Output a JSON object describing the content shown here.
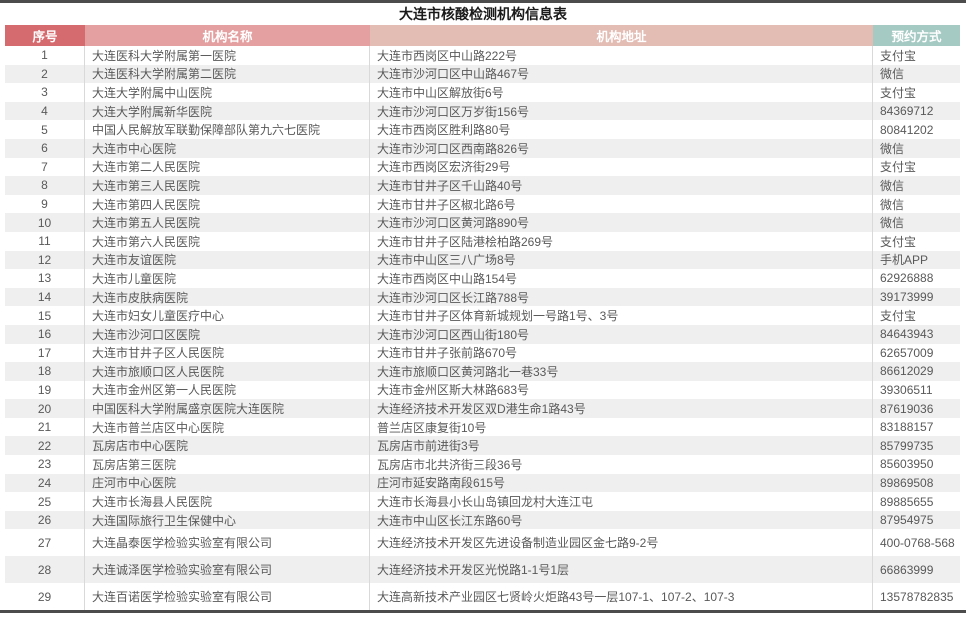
{
  "page": {
    "title": "大连市核酸检测机构信息表"
  },
  "colors": {
    "border_dark": "#4c4c4c",
    "header_no_bg": "#d56b6f",
    "header_name_bg": "#e4a0a0",
    "header_address_bg": "#e3bcb4",
    "header_booking_bg": "#a5cac3",
    "row_alt_bg": "#efefef",
    "body_text": "#595959"
  },
  "table": {
    "headers": [
      {
        "label": "序号",
        "bg": "#d56b6f"
      },
      {
        "label": "机构名称",
        "bg": "#e4a0a0"
      },
      {
        "label": "机构地址",
        "bg": "#e3bcb4"
      },
      {
        "label": "预约方式",
        "bg": "#a5cac3"
      }
    ],
    "rows": [
      {
        "no": "1",
        "name": "大连医科大学附属第一医院",
        "address": "大连市西岗区中山路222号",
        "booking": "支付宝"
      },
      {
        "no": "2",
        "name": "大连医科大学附属第二医院",
        "address": "大连市沙河口区中山路467号",
        "booking": "微信"
      },
      {
        "no": "3",
        "name": "大连大学附属中山医院",
        "address": "大连市中山区解放街6号",
        "booking": "支付宝"
      },
      {
        "no": "4",
        "name": "大连大学附属新华医院",
        "address": "大连市沙河口区万岁街156号",
        "booking": "84369712"
      },
      {
        "no": "5",
        "name": "中国人民解放军联勤保障部队第九六七医院",
        "address": "大连市西岗区胜利路80号",
        "booking": "80841202"
      },
      {
        "no": "6",
        "name": "大连市中心医院",
        "address": "大连市沙河口区西南路826号",
        "booking": "微信"
      },
      {
        "no": "7",
        "name": "大连市第二人民医院",
        "address": "大连市西岗区宏济街29号",
        "booking": "支付宝"
      },
      {
        "no": "8",
        "name": "大连市第三人民医院",
        "address": "大连市甘井子区千山路40号",
        "booking": "微信"
      },
      {
        "no": "9",
        "name": "大连市第四人民医院",
        "address": "大连市甘井子区椒北路6号",
        "booking": "微信"
      },
      {
        "no": "10",
        "name": "大连市第五人民医院",
        "address": "大连市沙河口区黄河路890号",
        "booking": "微信"
      },
      {
        "no": "11",
        "name": "大连市第六人民医院",
        "address": "大连市甘井子区陆港桧柏路269号",
        "booking": "支付宝"
      },
      {
        "no": "12",
        "name": "大连市友谊医院",
        "address": "大连市中山区三八广场8号",
        "booking": "手机APP"
      },
      {
        "no": "13",
        "name": "大连市儿童医院",
        "address": "大连市西岗区中山路154号",
        "booking": "62926888"
      },
      {
        "no": "14",
        "name": "大连市皮肤病医院",
        "address": "大连市沙河口区长江路788号",
        "booking": "39173999"
      },
      {
        "no": "15",
        "name": "大连市妇女儿童医疗中心",
        "address": "大连市甘井子区体育新城规划一号路1号、3号",
        "booking": "支付宝"
      },
      {
        "no": "16",
        "name": "大连市沙河口区医院",
        "address": "大连市沙河口区西山街180号",
        "booking": "84643943"
      },
      {
        "no": "17",
        "name": "大连市甘井子区人民医院",
        "address": "大连市甘井子张前路670号",
        "booking": "62657009"
      },
      {
        "no": "18",
        "name": "大连市旅顺口区人民医院",
        "address": "大连市旅顺口区黄河路北一巷33号",
        "booking": "86612029"
      },
      {
        "no": "19",
        "name": "大连市金州区第一人民医院",
        "address": "大连市金州区斯大林路683号",
        "booking": "39306511"
      },
      {
        "no": "20",
        "name": "中国医科大学附属盛京医院大连医院",
        "address": "大连经济技术开发区双D港生命1路43号",
        "booking": "87619036"
      },
      {
        "no": "21",
        "name": "大连市普兰店区中心医院",
        "address": "普兰店区康复街10号",
        "booking": "83188157"
      },
      {
        "no": "22",
        "name": "瓦房店市中心医院",
        "address": "瓦房店市前进街3号",
        "booking": "85799735"
      },
      {
        "no": "23",
        "name": "瓦房店第三医院",
        "address": "瓦房店市北共济街三段36号",
        "booking": "85603950"
      },
      {
        "no": "24",
        "name": "庄河市中心医院",
        "address": "庄河市延安路南段615号",
        "booking": "89869508"
      },
      {
        "no": "25",
        "name": "大连市长海县人民医院",
        "address": "大连市长海县小长山岛镇回龙村大连江屯",
        "booking": "89885655"
      },
      {
        "no": "26",
        "name": "大连国际旅行卫生保健中心",
        "address": "大连市中山区长江东路60号",
        "booking": "87954975"
      },
      {
        "no": "27",
        "name": "大连晶泰医学检验实验室有限公司",
        "address": "大连经济技术开发区先进设备制造业园区金七路9-2号",
        "booking": "400-0768-568"
      },
      {
        "no": "28",
        "name": "大连诚泽医学检验实验室有限公司",
        "address": "大连经济技术开发区光悦路1-1号1层",
        "booking": "66863999"
      },
      {
        "no": "29",
        "name": "大连百诺医学检验实验室有限公司",
        "address": "大连高新技术产业园区七贤岭火炬路43号一层107-1、107-2、107-3",
        "booking": "13578782835"
      }
    ]
  }
}
